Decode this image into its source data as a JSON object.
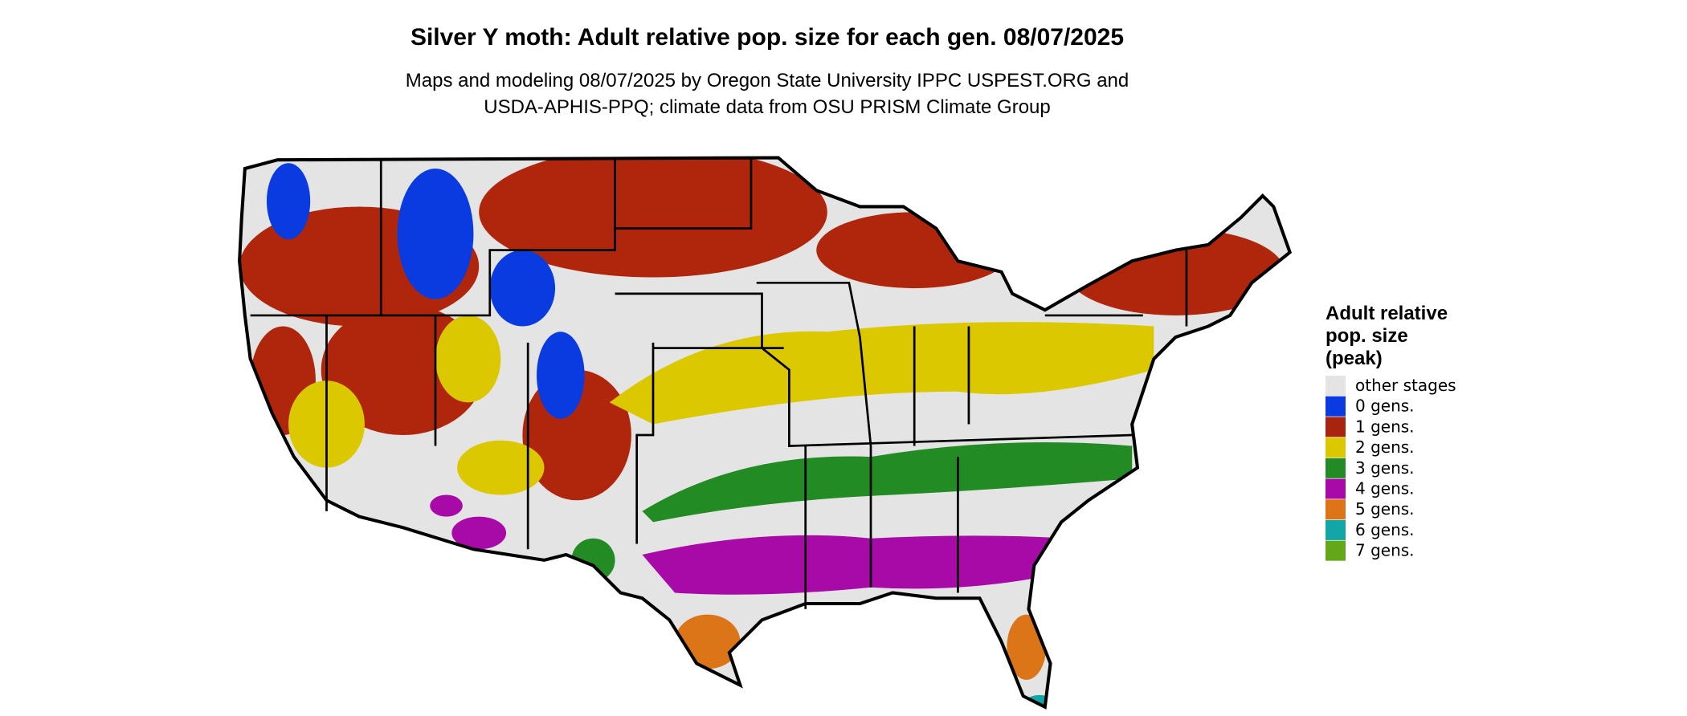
{
  "header": {
    "title": "Silver Y moth: Adult relative pop. size for each gen. 08/07/2025",
    "subtitle": [
      "Maps and modeling 08/07/2025 by Oregon State University IPPC USPEST.ORG and",
      "USDA-APHIS-PPQ; climate data from OSU PRISM Climate Group"
    ]
  },
  "legend": {
    "title": [
      "Adult relative",
      "pop. size",
      "(peak)"
    ],
    "items": [
      {
        "label": "other stages",
        "color": "#e4e4e4"
      },
      {
        "label": "0 gens.",
        "color": "#0a3be0"
      },
      {
        "label": "1 gens.",
        "color": "#a8240f"
      },
      {
        "label": "2 gens.",
        "color": "#dcc800"
      },
      {
        "label": "3 gens.",
        "color": "#238b23"
      },
      {
        "label": "4 gens.",
        "color": "#a80aa8"
      },
      {
        "label": "5 gens.",
        "color": "#dc7418"
      },
      {
        "label": "6 gens.",
        "color": "#12a6a6"
      },
      {
        "label": "7 gens.",
        "color": "#62a818"
      }
    ]
  }
}
